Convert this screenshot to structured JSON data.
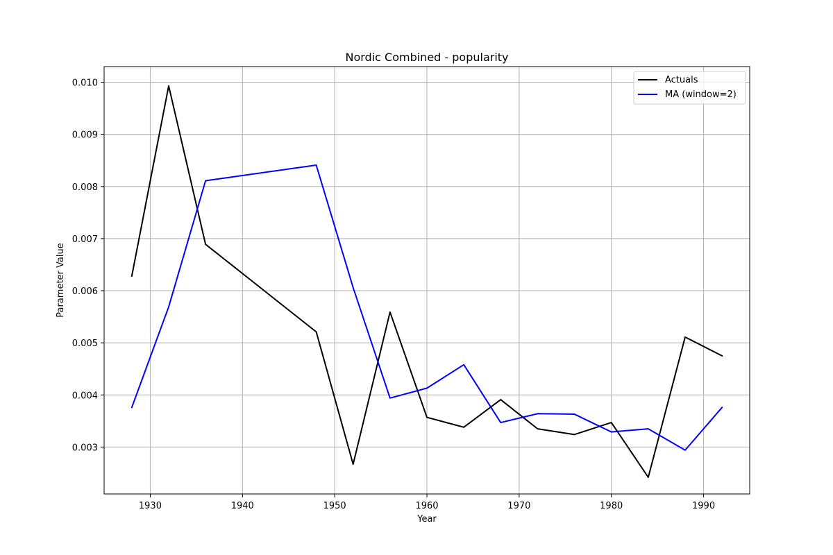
{
  "chart_data": {
    "type": "line",
    "title": "Nordic Combined - popularity",
    "xlabel": "Year",
    "ylabel": "Parameter Value",
    "xlim": [
      1925,
      1995
    ],
    "ylim": [
      0.0021,
      0.0103
    ],
    "x_ticks": [
      "1930",
      "1940",
      "1950",
      "1960",
      "1970",
      "1980",
      "1990"
    ],
    "y_ticks": [
      "0.003",
      "0.004",
      "0.005",
      "0.006",
      "0.007",
      "0.008",
      "0.009",
      "0.010"
    ],
    "grid": true,
    "legend_position": "top-right",
    "x": [
      1928,
      1932,
      1936,
      1948,
      1952,
      1956,
      1960,
      1964,
      1968,
      1972,
      1976,
      1980,
      1984,
      1988,
      1992
    ],
    "series": [
      {
        "name": "Actuals",
        "color": "#000000",
        "values": [
          0.00628,
          0.00993,
          0.00689,
          0.00521,
          0.00267,
          0.00559,
          0.00357,
          0.00338,
          0.00391,
          0.00335,
          0.00324,
          0.00347,
          0.00242,
          0.00511,
          0.00475
        ]
      },
      {
        "name": "MA (window=2)",
        "color": "#0000ff",
        "values": [
          0.00376,
          0.00569,
          0.00811,
          0.00841,
          0.00606,
          0.00394,
          0.00413,
          0.00458,
          0.00347,
          0.00364,
          0.00363,
          0.00329,
          0.00335,
          0.00294,
          0.00376
        ]
      }
    ]
  }
}
